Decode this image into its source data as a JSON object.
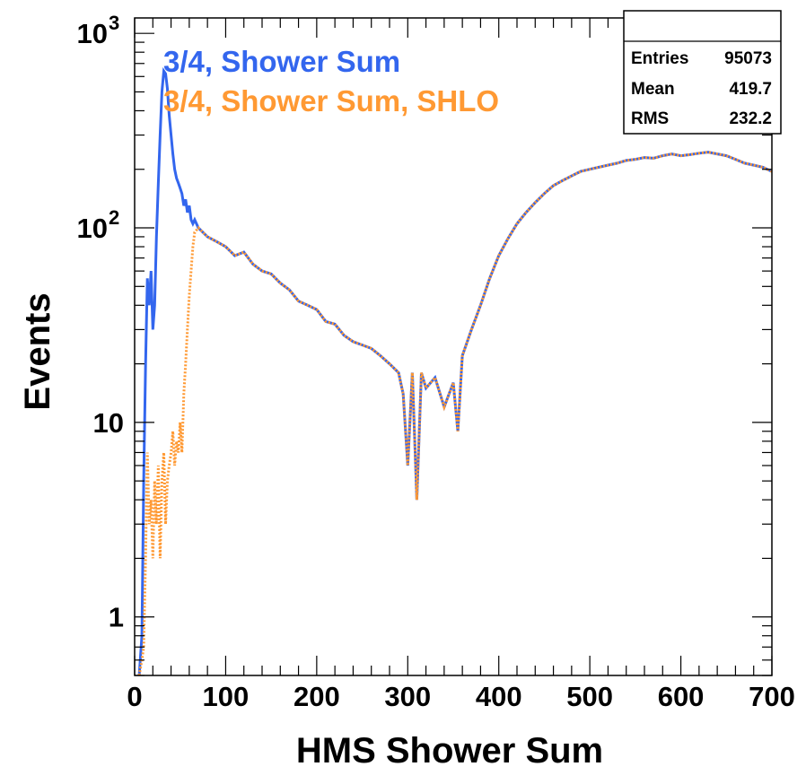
{
  "chart_data": {
    "type": "line",
    "title": "",
    "xlabel": "HMS Shower Sum",
    "ylabel": "Events",
    "xlim": [
      0,
      700
    ],
    "ylim": [
      0.5,
      1200
    ],
    "yscale": "log",
    "grid": false,
    "x_ticks": [
      "0",
      "100",
      "200",
      "300",
      "400",
      "500",
      "600",
      "700"
    ],
    "y_ticks": [
      {
        "value": 1,
        "label": "1"
      },
      {
        "value": 10,
        "label": "10"
      },
      {
        "value": 100,
        "label": "10",
        "exp": "2"
      },
      {
        "value": 1000,
        "label": "10",
        "exp": "3"
      }
    ],
    "legend": {
      "placement": "top-left",
      "entries": [
        {
          "name": "3/4, Shower Sum",
          "color": "#3366ee"
        },
        {
          "name": "3/4, Shower Sum, SHLO",
          "color": "#ff9933"
        }
      ]
    },
    "stats_box": {
      "placement": "top-right",
      "rows": [
        {
          "label": "Entries",
          "value": "95073"
        },
        {
          "label": "Mean",
          "value": "419.7"
        },
        {
          "label": "RMS",
          "value": "232.2"
        }
      ]
    },
    "series": [
      {
        "name": "3/4, Shower Sum",
        "color": "#3366ee",
        "style": "solid",
        "x": [
          5,
          8,
          10,
          12,
          14,
          16,
          18,
          20,
          22,
          24,
          26,
          28,
          30,
          32,
          34,
          36,
          38,
          40,
          42,
          44,
          46,
          48,
          50,
          52,
          54,
          56,
          58,
          60,
          62,
          64,
          66,
          70,
          80,
          90,
          100,
          110,
          120,
          130,
          140,
          150,
          160,
          170,
          180,
          190,
          200,
          210,
          220,
          230,
          240,
          250,
          260,
          270,
          280,
          290,
          295,
          300,
          305,
          310,
          315,
          320,
          330,
          340,
          350,
          355,
          360,
          370,
          380,
          390,
          400,
          410,
          420,
          430,
          440,
          450,
          460,
          470,
          480,
          490,
          500,
          510,
          520,
          530,
          540,
          550,
          560,
          570,
          580,
          590,
          600,
          610,
          620,
          630,
          640,
          650,
          660,
          670,
          680,
          690,
          700
        ],
        "y": [
          0.5,
          0.8,
          5,
          20,
          55,
          40,
          60,
          30,
          40,
          90,
          170,
          300,
          500,
          640,
          620,
          520,
          380,
          300,
          240,
          200,
          180,
          170,
          160,
          150,
          130,
          140,
          120,
          130,
          110,
          105,
          110,
          100,
          90,
          85,
          80,
          72,
          75,
          65,
          60,
          58,
          52,
          48,
          42,
          40,
          38,
          33,
          32,
          28,
          26,
          25,
          24,
          22,
          20,
          18,
          14,
          6,
          18,
          4,
          18,
          15,
          17,
          12,
          16,
          9,
          22,
          30,
          40,
          55,
          72,
          88,
          105,
          120,
          135,
          150,
          165,
          175,
          185,
          195,
          200,
          205,
          210,
          215,
          222,
          225,
          230,
          228,
          235,
          240,
          235,
          238,
          242,
          245,
          240,
          235,
          225,
          215,
          210,
          205,
          195
        ]
      },
      {
        "name": "3/4, Shower Sum, SHLO",
        "color": "#ff9933",
        "style": "dotted",
        "x": [
          5,
          8,
          10,
          12,
          14,
          16,
          18,
          20,
          22,
          24,
          26,
          28,
          30,
          32,
          34,
          36,
          38,
          40,
          42,
          44,
          46,
          48,
          50,
          52,
          54,
          56,
          58,
          60,
          62,
          64,
          66,
          70,
          80,
          90,
          100,
          110,
          120,
          130,
          140,
          150,
          160,
          170,
          180,
          190,
          200,
          210,
          220,
          230,
          240,
          250,
          260,
          270,
          280,
          290,
          295,
          300,
          305,
          310,
          315,
          320,
          330,
          340,
          350,
          355,
          360,
          370,
          380,
          390,
          400,
          410,
          420,
          430,
          440,
          450,
          460,
          470,
          480,
          490,
          500,
          510,
          520,
          530,
          540,
          550,
          560,
          570,
          580,
          590,
          600,
          610,
          620,
          630,
          640,
          650,
          660,
          670,
          680,
          690,
          700
        ],
        "y": [
          0.5,
          0.6,
          0.7,
          2,
          7,
          3,
          4,
          2,
          5,
          3,
          6,
          2,
          5,
          7,
          3,
          5,
          6,
          7,
          9,
          6,
          8,
          7,
          10,
          7,
          14,
          20,
          30,
          45,
          60,
          80,
          95,
          100,
          90,
          85,
          80,
          72,
          75,
          65,
          60,
          58,
          52,
          48,
          42,
          40,
          38,
          33,
          32,
          28,
          26,
          25,
          24,
          22,
          20,
          18,
          14,
          6,
          18,
          4,
          18,
          15,
          17,
          12,
          16,
          9,
          22,
          30,
          40,
          55,
          72,
          88,
          105,
          120,
          135,
          150,
          165,
          175,
          185,
          195,
          200,
          205,
          210,
          215,
          222,
          225,
          230,
          228,
          235,
          240,
          235,
          238,
          242,
          245,
          240,
          235,
          225,
          215,
          210,
          205,
          195
        ]
      }
    ]
  }
}
